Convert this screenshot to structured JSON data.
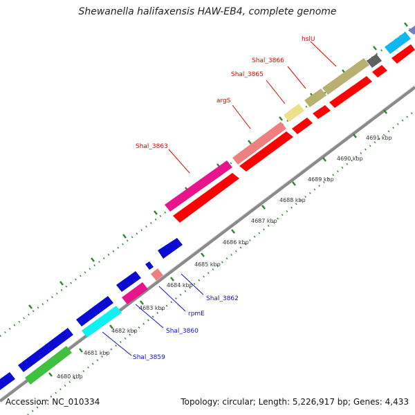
{
  "title": "Shewanella halifaxensis HAW-EB4, complete genome",
  "accession": "Accession: NC_010334",
  "summary": "Topology: circular; Length: 5,226,917 bp; Genes: 4,433",
  "scale_labels": [
    "4680 kbp",
    "4681 kbp",
    "4682 kbp",
    "4683 kbp",
    "4684 kbp",
    "4685 kbp",
    "4686 kbp",
    "4687 kbp",
    "4688 kbp",
    "4689 kbp",
    "4690 kbp",
    "4691 kbp"
  ],
  "top_gene_labels": [
    "hslU",
    "Shal_3866",
    "Shal_3865",
    "argS",
    "Shal_3863"
  ],
  "bottom_gene_labels": [
    "Shal_3862",
    "rpmE",
    "Shal_3860",
    "Shal_3859"
  ],
  "colors": {
    "label_top": "#e00000",
    "label_bottom": "#1010c8",
    "backbone": "#8a8a8a",
    "ticks": "#2a8a2a"
  }
}
